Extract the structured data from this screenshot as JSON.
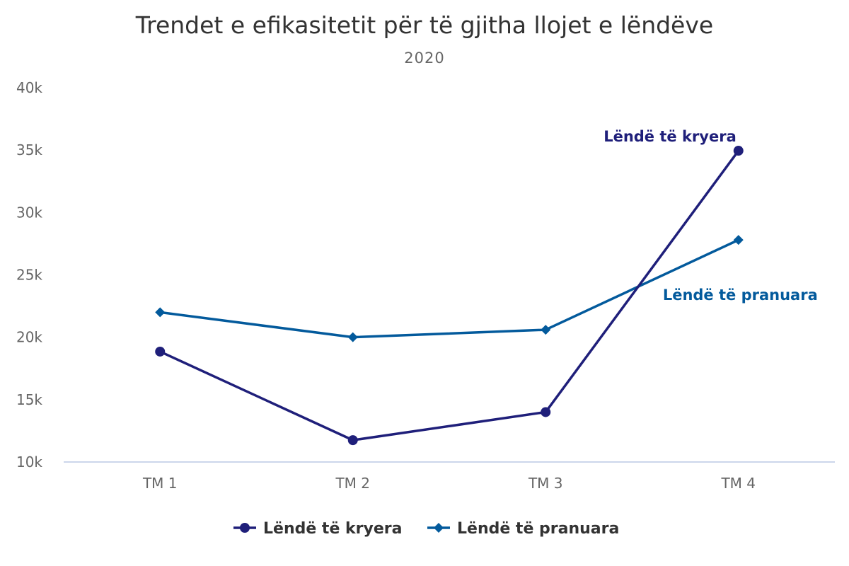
{
  "chart_data": {
    "type": "line",
    "title": "Trendet e efikasitetit për të gjitha llojet e lëndëve",
    "subtitle": "2020",
    "categories": [
      "TM 1",
      "TM 2",
      "TM 3",
      "TM 4"
    ],
    "ylim": [
      10000,
      40000
    ],
    "y_ticks": [
      {
        "value": 10000,
        "label": "10k"
      },
      {
        "value": 15000,
        "label": "15k"
      },
      {
        "value": 20000,
        "label": "20k"
      },
      {
        "value": 25000,
        "label": "25k"
      },
      {
        "value": 30000,
        "label": "30k"
      },
      {
        "value": 35000,
        "label": "35k"
      },
      {
        "value": 40000,
        "label": "40k"
      }
    ],
    "grid": false,
    "legend_position": "bottom-center",
    "series": [
      {
        "name": "Lëndë të kryera",
        "values": [
          18850,
          11750,
          14000,
          34950
        ],
        "color": "#1f1f7a",
        "marker": "circle",
        "end_label": "Lëndë të kryera"
      },
      {
        "name": "Lëndë të pranuara",
        "values": [
          22000,
          20000,
          20600,
          27800
        ],
        "color": "#035a9c",
        "marker": "diamond",
        "end_label": "Lëndë të pranuara"
      }
    ]
  }
}
